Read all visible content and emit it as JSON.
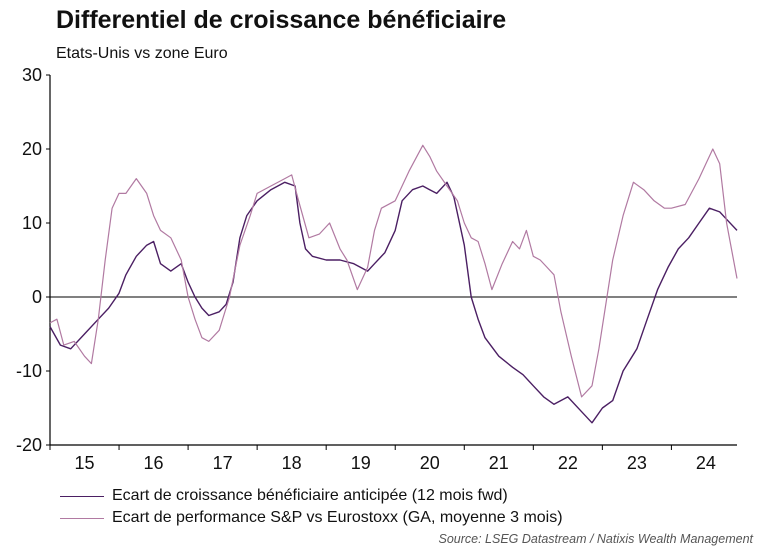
{
  "header": {
    "title": "Differentiel de croissance bénéficiaire",
    "subtitle": "Etats-Unis vs zone Euro"
  },
  "source": "Source: LSEG Datastream / Natixis Wealth Management",
  "colors": {
    "series1": "#4b1f63",
    "series2": "#b17aa2",
    "zero_line": "#000000",
    "axis": "#000000"
  },
  "chart_data": {
    "type": "line",
    "title": "Differentiel de croissance bénéficiaire",
    "subtitle": "Etats-Unis vs zone Euro",
    "xlabel": "",
    "ylabel": "",
    "x_tick_labels": [
      "15",
      "16",
      "17",
      "18",
      "19",
      "20",
      "21",
      "22",
      "23",
      "24"
    ],
    "x_tick_positions": [
      2015.5,
      2016.5,
      2017.5,
      2018.5,
      2019.5,
      2020.5,
      2021.5,
      2022.5,
      2023.5,
      2024.5
    ],
    "xlim": [
      2015.0,
      2024.95
    ],
    "y_ticks": [
      30,
      20,
      10,
      0,
      -10,
      -20
    ],
    "ylim": [
      -20,
      30
    ],
    "grid": false,
    "legend_position": "bottom",
    "series": [
      {
        "name": "Ecart de croissance bénéficiaire anticipée (12 mois fwd)",
        "x": [
          2015.0,
          2015.15,
          2015.3,
          2015.5,
          2015.7,
          2015.85,
          2016.0,
          2016.1,
          2016.25,
          2016.4,
          2016.5,
          2016.6,
          2016.75,
          2016.9,
          2017.0,
          2017.1,
          2017.2,
          2017.3,
          2017.45,
          2017.55,
          2017.65,
          2017.75,
          2017.85,
          2018.0,
          2018.2,
          2018.4,
          2018.55,
          2018.62,
          2018.7,
          2018.8,
          2019.0,
          2019.2,
          2019.4,
          2019.6,
          2019.7,
          2019.85,
          2020.0,
          2020.1,
          2020.25,
          2020.4,
          2020.5,
          2020.6,
          2020.75,
          2020.85,
          2021.0,
          2021.1,
          2021.2,
          2021.3,
          2021.5,
          2021.7,
          2021.85,
          2022.0,
          2022.15,
          2022.3,
          2022.5,
          2022.7,
          2022.85,
          2023.0,
          2023.15,
          2023.3,
          2023.5,
          2023.65,
          2023.8,
          2023.95,
          2024.1,
          2024.25,
          2024.4,
          2024.55,
          2024.7,
          2024.8,
          2024.95
        ],
        "values": [
          -4.0,
          -6.5,
          -7.0,
          -5.0,
          -3.0,
          -1.5,
          0.5,
          3.0,
          5.5,
          7.0,
          7.5,
          4.5,
          3.5,
          4.5,
          2.0,
          0.0,
          -1.5,
          -2.5,
          -2.0,
          -1.0,
          2.0,
          8.0,
          11.0,
          13.0,
          14.5,
          15.5,
          15.0,
          10.0,
          6.5,
          5.5,
          5.0,
          5.0,
          4.5,
          3.5,
          4.5,
          6.0,
          9.0,
          13.0,
          14.5,
          15.0,
          14.5,
          14.0,
          15.5,
          13.5,
          7.0,
          0.0,
          -3.0,
          -5.5,
          -8.0,
          -9.5,
          -10.5,
          -12.0,
          -13.5,
          -14.5,
          -13.5,
          -15.5,
          -17.0,
          -15.0,
          -14.0,
          -10.0,
          -7.0,
          -3.0,
          1.0,
          4.0,
          6.5,
          8.0,
          10.0,
          12.0,
          11.5,
          10.5,
          9.0
        ]
      },
      {
        "name": "Ecart de performance S&P vs Eurostoxx (GA, moyenne 3 mois)",
        "x": [
          2015.0,
          2015.1,
          2015.2,
          2015.35,
          2015.5,
          2015.6,
          2015.7,
          2015.8,
          2015.9,
          2016.0,
          2016.1,
          2016.25,
          2016.4,
          2016.5,
          2016.6,
          2016.75,
          2016.9,
          2017.0,
          2017.1,
          2017.2,
          2017.3,
          2017.45,
          2017.6,
          2017.75,
          2017.9,
          2018.0,
          2018.2,
          2018.4,
          2018.5,
          2018.6,
          2018.75,
          2018.9,
          2019.05,
          2019.2,
          2019.3,
          2019.45,
          2019.6,
          2019.7,
          2019.8,
          2020.0,
          2020.2,
          2020.4,
          2020.5,
          2020.6,
          2020.75,
          2020.9,
          2021.0,
          2021.1,
          2021.2,
          2021.3,
          2021.4,
          2021.55,
          2021.7,
          2021.8,
          2021.9,
          2022.0,
          2022.1,
          2022.2,
          2022.3,
          2022.4,
          2022.55,
          2022.7,
          2022.85,
          2022.95,
          2023.05,
          2023.15,
          2023.3,
          2023.45,
          2023.6,
          2023.75,
          2023.9,
          2024.0,
          2024.2,
          2024.4,
          2024.5,
          2024.6,
          2024.7,
          2024.8,
          2024.95
        ],
        "values": [
          -3.5,
          -3.0,
          -6.5,
          -6.0,
          -8.0,
          -9.0,
          -3.0,
          5.0,
          12.0,
          14.0,
          14.0,
          16.0,
          14.0,
          11.0,
          9.0,
          8.0,
          5.0,
          0.0,
          -3.0,
          -5.5,
          -6.0,
          -4.5,
          0.0,
          7.0,
          11.0,
          14.0,
          15.0,
          16.0,
          16.5,
          13.0,
          8.0,
          8.5,
          10.0,
          6.5,
          5.0,
          1.0,
          4.0,
          9.0,
          12.0,
          13.0,
          17.0,
          20.5,
          19.0,
          17.0,
          15.0,
          13.0,
          10.0,
          8.0,
          7.5,
          4.5,
          1.0,
          4.5,
          7.5,
          6.5,
          9.0,
          5.5,
          5.0,
          4.0,
          3.0,
          -2.0,
          -8.0,
          -13.5,
          -12.0,
          -7.0,
          -1.0,
          5.0,
          11.0,
          15.5,
          14.5,
          13.0,
          12.0,
          12.0,
          12.5,
          16.0,
          18.0,
          20.0,
          18.0,
          10.0,
          2.5
        ]
      }
    ]
  }
}
